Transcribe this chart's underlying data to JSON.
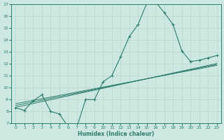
{
  "xlabel": "Humidex (Indice chaleur)",
  "background_color": "#cde8e0",
  "line_color": "#2e7d6e",
  "grid_color": "#b8d8d0",
  "x_data": [
    0,
    1,
    2,
    3,
    4,
    5,
    6,
    7,
    8,
    9,
    10,
    11,
    12,
    13,
    14,
    15,
    16,
    17,
    18,
    19,
    20,
    21,
    22,
    23
  ],
  "y_main": [
    8.3,
    8.1,
    8.9,
    9.4,
    8.0,
    7.8,
    6.7,
    6.7,
    9.0,
    9.0,
    10.5,
    11.0,
    12.6,
    14.3,
    15.3,
    17.1,
    17.2,
    16.3,
    15.3,
    13.1,
    12.2,
    12.3,
    12.5,
    12.7
  ],
  "y_line1": [
    8.35,
    8.51,
    8.67,
    8.83,
    8.99,
    9.15,
    9.31,
    9.47,
    9.63,
    9.79,
    9.95,
    10.11,
    10.27,
    10.43,
    10.59,
    10.75,
    10.91,
    11.07,
    11.23,
    11.39,
    11.55,
    11.71,
    11.87,
    12.03
  ],
  "y_line2": [
    8.5,
    8.65,
    8.8,
    8.95,
    9.1,
    9.25,
    9.4,
    9.55,
    9.7,
    9.85,
    10.0,
    10.15,
    10.3,
    10.45,
    10.6,
    10.75,
    10.9,
    11.05,
    11.2,
    11.35,
    11.5,
    11.65,
    11.8,
    11.95
  ],
  "y_line3": [
    8.65,
    8.79,
    8.93,
    9.07,
    9.21,
    9.35,
    9.49,
    9.63,
    9.77,
    9.91,
    10.05,
    10.19,
    10.33,
    10.47,
    10.61,
    10.75,
    10.89,
    11.03,
    11.17,
    11.31,
    11.45,
    11.59,
    11.73,
    11.87
  ],
  "ylim": [
    7,
    17
  ],
  "xlim": [
    -0.5,
    23.5
  ],
  "yticks": [
    7,
    8,
    9,
    10,
    11,
    12,
    13,
    14,
    15,
    16,
    17
  ],
  "xticks": [
    0,
    1,
    2,
    3,
    4,
    5,
    6,
    7,
    8,
    9,
    10,
    11,
    12,
    13,
    14,
    15,
    16,
    17,
    18,
    19,
    20,
    21,
    22,
    23
  ]
}
